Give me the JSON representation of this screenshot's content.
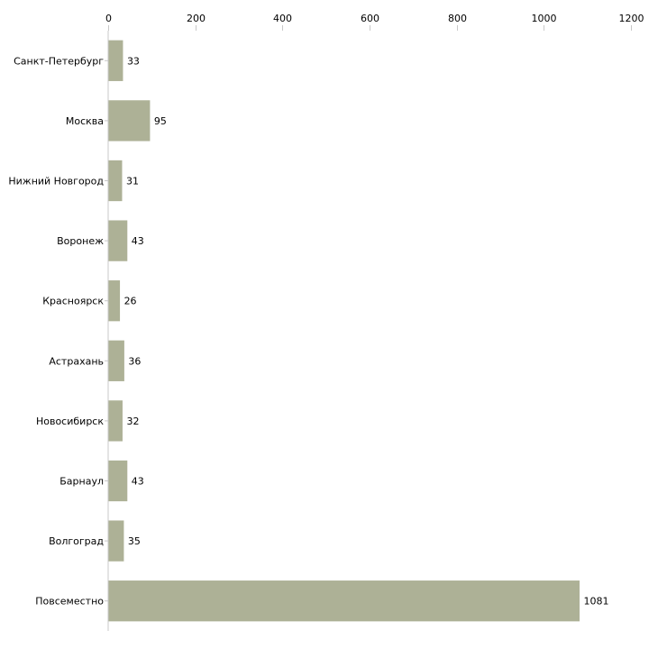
{
  "chart_data": {
    "type": "bar",
    "orientation": "horizontal",
    "title": "",
    "xlabel": "",
    "ylabel": "",
    "xlim": [
      0,
      1200
    ],
    "x_ticks": [
      "0",
      "200",
      "400",
      "600",
      "800",
      "1000",
      "1200"
    ],
    "x_tick_values": [
      0,
      200,
      400,
      600,
      800,
      1000,
      1200
    ],
    "grid": false,
    "bar_color": "#adb196",
    "axis_color": "#c8c8c8",
    "categories": [
      "Санкт-Петербург",
      "Москва",
      "Нижний Новгород",
      "Воронеж",
      "Красноярск",
      "Астрахань",
      "Новосибирск",
      "Барнаул",
      "Волгоград",
      "Повсеместно"
    ],
    "values": [
      33,
      95,
      31,
      43,
      26,
      36,
      32,
      43,
      35,
      1081
    ],
    "value_labels": [
      "33",
      "95",
      "31",
      "43",
      "26",
      "36",
      "32",
      "43",
      "35",
      "1081"
    ]
  }
}
